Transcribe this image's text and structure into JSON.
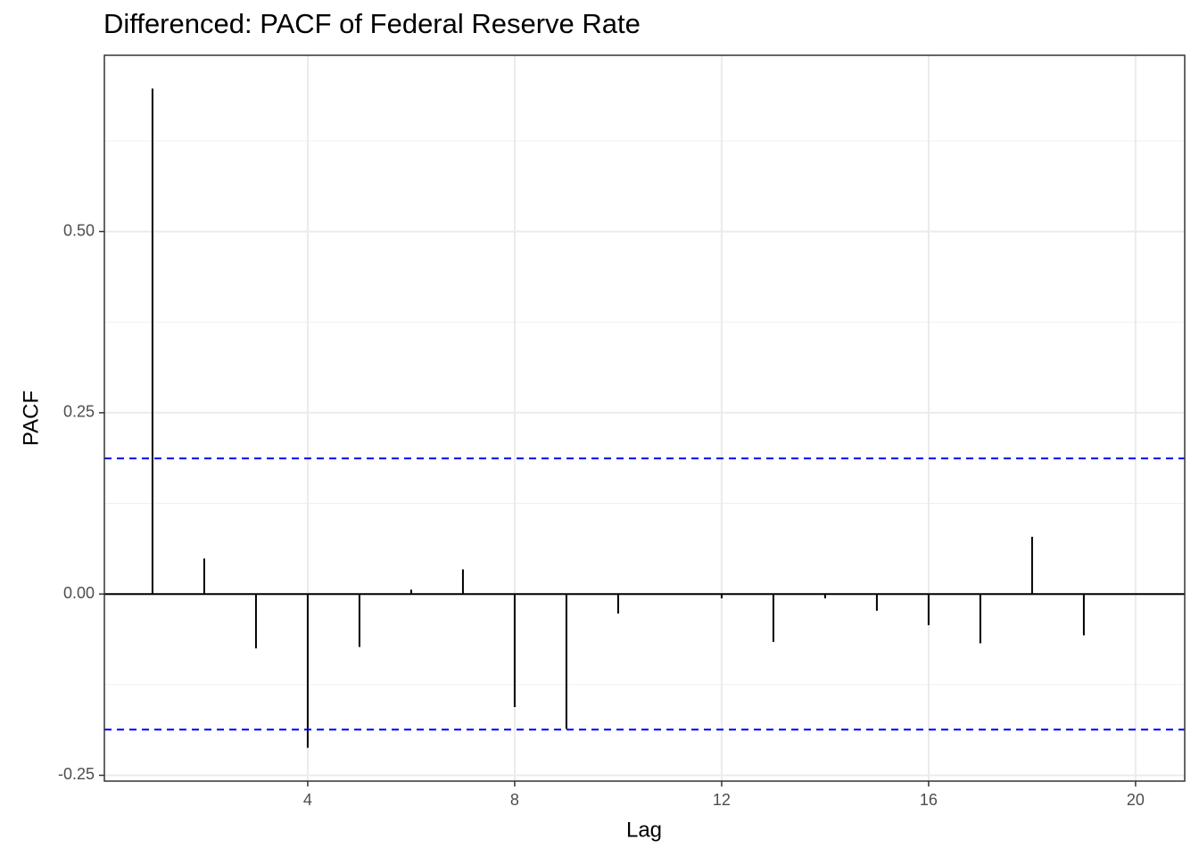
{
  "chart_data": {
    "type": "lollipop-stem",
    "title": "Differenced: PACF of Federal Reserve Rate",
    "x_label": "Lag",
    "y_label": "PACF",
    "x": [
      1,
      2,
      3,
      4,
      5,
      6,
      7,
      8,
      9,
      10,
      11,
      12,
      13,
      14,
      15,
      16,
      17,
      18,
      19,
      20
    ],
    "values": [
      0.697,
      0.049,
      -0.075,
      -0.212,
      -0.073,
      0.006,
      0.034,
      -0.156,
      -0.186,
      -0.027,
      -0.001,
      -0.006,
      -0.066,
      -0.006,
      -0.023,
      -0.043,
      -0.068,
      0.079,
      -0.057,
      -0.001
    ],
    "color": "#000000",
    "ci_lines": [
      0.187,
      -0.187
    ],
    "ci_color": "#0000ff",
    "xlim": [
      0.07,
      20.95
    ],
    "xticks": [
      4,
      8,
      12,
      16,
      20
    ],
    "ylim": [
      -0.258,
      0.743
    ],
    "yticks": [
      {
        "value": -0.25,
        "label": "-0.25"
      },
      {
        "value": 0,
        "label": "0.00"
      },
      {
        "value": 0.25,
        "label": "0.25"
      },
      {
        "value": 0.5,
        "label": "0.50"
      }
    ],
    "grid": true,
    "minor_grid": true
  }
}
